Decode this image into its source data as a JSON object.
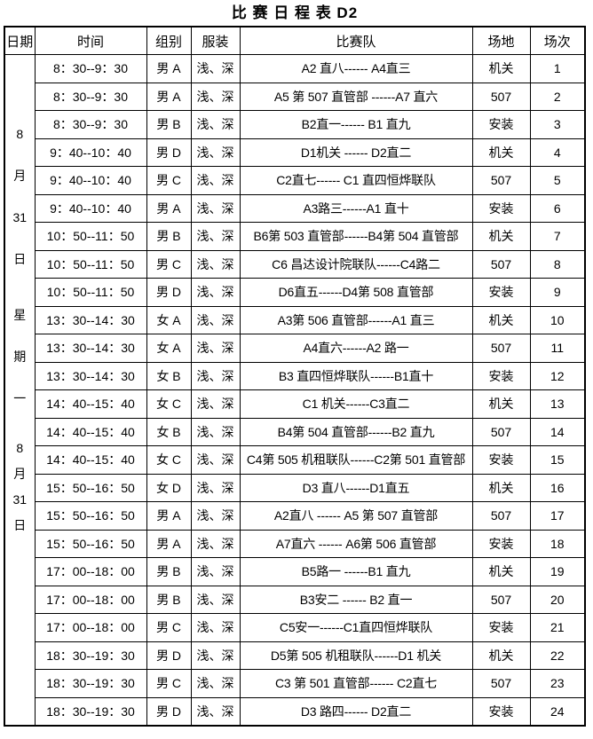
{
  "title": "比 赛 日 程 表 D2",
  "headers": [
    "日期",
    "时间",
    "组别",
    "服装",
    "比赛队",
    "场地",
    "场次"
  ],
  "date_column": {
    "date_top": [
      "8",
      "月",
      "31",
      "日"
    ],
    "weekday": [
      "星",
      "期",
      "一"
    ],
    "date_bottom": [
      "8",
      "月",
      "31",
      "日"
    ]
  },
  "rows": [
    {
      "time": "8：30--9：30",
      "group": "男 A",
      "dress": "浅、深",
      "teams": "A2 直八------ A4直三",
      "venue": "机关",
      "no": "1"
    },
    {
      "time": "8：30--9：30",
      "group": "男 A",
      "dress": "浅、深",
      "teams": "A5 第 507 直管部 ------A7 直六",
      "venue": "507",
      "no": "2"
    },
    {
      "time": "8：30--9：30",
      "group": "男 B",
      "dress": "浅、深",
      "teams": "B2直一------ B1 直九",
      "venue": "安装",
      "no": "3"
    },
    {
      "time": "9：40--10：40",
      "group": "男 D",
      "dress": "浅、深",
      "teams": "D1机关 ------ D2直二",
      "venue": "机关",
      "no": "4"
    },
    {
      "time": "9：40--10：40",
      "group": "男 C",
      "dress": "浅、深",
      "teams": "C2直七------ C1 直四恒烨联队",
      "venue": "507",
      "no": "5"
    },
    {
      "time": "9：40--10：40",
      "group": "男 A",
      "dress": "浅、深",
      "teams": "A3路三------A1 直十",
      "venue": "安装",
      "no": "6"
    },
    {
      "time": "10：50--11：50",
      "group": "男 B",
      "dress": "浅、深",
      "teams": "B6第 503 直管部------B4第 504 直管部",
      "venue": "机关",
      "no": "7"
    },
    {
      "time": "10：50--11：50",
      "group": "男 C",
      "dress": "浅、深",
      "teams": "C6 昌达设计院联队------C4路二",
      "venue": "507",
      "no": "8"
    },
    {
      "time": "10：50--11：50",
      "group": "男 D",
      "dress": "浅、深",
      "teams": "D6直五------D4第 508 直管部",
      "venue": "安装",
      "no": "9"
    },
    {
      "time": "13：30--14：30",
      "group": "女 A",
      "dress": "浅、深",
      "teams": "A3第 506 直管部------A1 直三",
      "venue": "机关",
      "no": "10"
    },
    {
      "time": "13：30--14：30",
      "group": "女 A",
      "dress": "浅、深",
      "teams": "A4直六------A2 路一",
      "venue": "507",
      "no": "11"
    },
    {
      "time": "13：30--14：30",
      "group": "女 B",
      "dress": "浅、深",
      "teams": "B3 直四恒烨联队------B1直十",
      "venue": "安装",
      "no": "12"
    },
    {
      "time": "14：40--15：40",
      "group": "女 C",
      "dress": "浅、深",
      "teams": "C1 机关------C3直二",
      "venue": "机关",
      "no": "13"
    },
    {
      "time": "14：40--15：40",
      "group": "女 B",
      "dress": "浅、深",
      "teams": "B4第 504 直管部------B2 直九",
      "venue": "507",
      "no": "14"
    },
    {
      "time": "14：40--15：40",
      "group": "女 C",
      "dress": "浅、深",
      "teams": "C4第 505 机租联队------C2第 501 直管部",
      "venue": "安装",
      "no": "15"
    },
    {
      "time": "15：50--16：50",
      "group": "女 D",
      "dress": "浅、深",
      "teams": "D3 直八------D1直五",
      "venue": "机关",
      "no": "16"
    },
    {
      "time": "15：50--16：50",
      "group": "男 A",
      "dress": "浅、深",
      "teams": "A2直八 ------ A5 第 507 直管部",
      "venue": "507",
      "no": "17"
    },
    {
      "time": "15：50--16：50",
      "group": "男 A",
      "dress": "浅、深",
      "teams": "A7直六 ------ A6第 506 直管部",
      "venue": "安装",
      "no": "18"
    },
    {
      "time": "17：00--18：00",
      "group": "男 B",
      "dress": "浅、深",
      "teams": "B5路一 ------B1 直九",
      "venue": "机关",
      "no": "19"
    },
    {
      "time": "17：00--18：00",
      "group": "男 B",
      "dress": "浅、深",
      "teams": "B3安二 ------ B2 直一",
      "venue": "507",
      "no": "20"
    },
    {
      "time": "17：00--18：00",
      "group": "男 C",
      "dress": "浅、深",
      "teams": "C5安一------C1直四恒烨联队",
      "venue": "安装",
      "no": "21"
    },
    {
      "time": "18：30--19：30",
      "group": "男 D",
      "dress": "浅、深",
      "teams": "D5第 505 机租联队------D1 机关",
      "venue": "机关",
      "no": "22"
    },
    {
      "time": "18：30--19：30",
      "group": "男 C",
      "dress": "浅、深",
      "teams": "C3 第 501 直管部------ C2直七",
      "venue": "507",
      "no": "23"
    },
    {
      "time": "18：30--19：30",
      "group": "男 D",
      "dress": "浅、深",
      "teams": "D3 路四------ D2直二",
      "venue": "安装",
      "no": "24"
    }
  ]
}
